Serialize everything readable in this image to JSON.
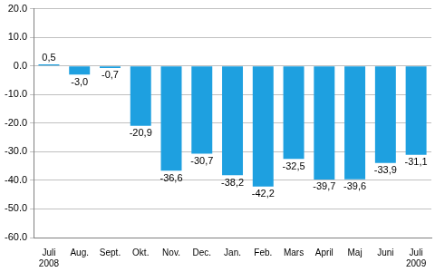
{
  "chart_data": {
    "type": "bar",
    "categories": [
      [
        "Juli",
        "2008"
      ],
      "Aug.",
      "Sept.",
      "Okt.",
      "Nov.",
      "Dec.",
      "Jan.",
      "Feb.",
      "Mars",
      "April",
      "Maj",
      "Juni",
      [
        "Juli",
        "2009"
      ]
    ],
    "values": [
      0.5,
      -3.0,
      -0.7,
      -20.9,
      -36.6,
      -30.7,
      -38.2,
      -42.2,
      -32.5,
      -39.7,
      -39.6,
      -33.9,
      -31.1
    ],
    "value_labels": [
      "0,5",
      "-3,0",
      "-0,7",
      "-20,9",
      "-36,6",
      "-30,7",
      "-38,2",
      "-42,2",
      "-32,5",
      "-39,7",
      "-39,6",
      "-33,9",
      "-31,1"
    ],
    "color": "#1ea0e0",
    "ylim": [
      -60,
      20
    ],
    "yticks": [
      {
        "value": -60,
        "label": "-60.0"
      },
      {
        "value": -50,
        "label": "-50.0"
      },
      {
        "value": -40,
        "label": "-40.0"
      },
      {
        "value": -30,
        "label": "-30.0"
      },
      {
        "value": -20,
        "label": "-20.0"
      },
      {
        "value": -10,
        "label": "-10.0"
      },
      {
        "value": 0,
        "label": "0.0"
      },
      {
        "value": 10,
        "label": "10.0"
      },
      {
        "value": 20,
        "label": "20.0"
      }
    ],
    "grid": true,
    "data_labels": true
  }
}
